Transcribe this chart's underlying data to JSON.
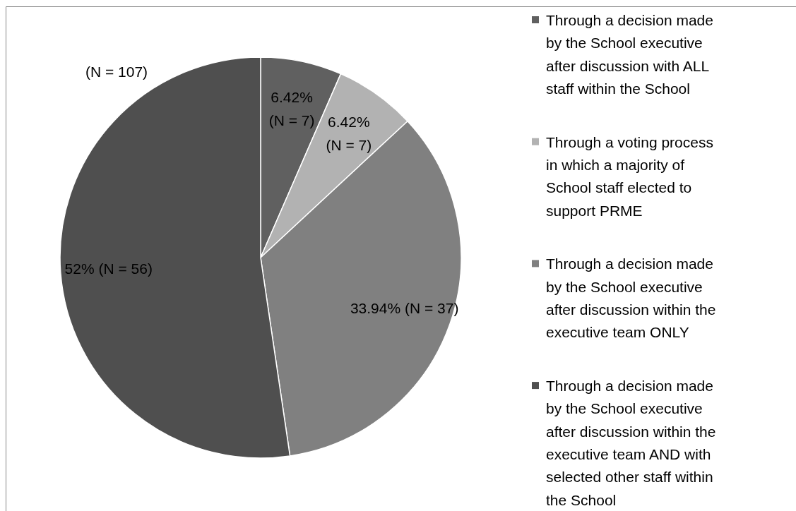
{
  "chart_data": {
    "type": "pie",
    "title": "(N = 107)",
    "categories": [
      "Through a decision made by the School executive after discussion with ALL staff within the School",
      "Through a voting process in which a majority of School staff elected to support PRME",
      "Through a decision made by the School executive after discussion within the executive team ONLY",
      "Through a decision made by the School executive after discussion within the executive team AND with selected other staff within the School"
    ],
    "values": [
      7,
      7,
      37,
      56
    ],
    "colors": [
      "#606060",
      "#b2b2b2",
      "#808080",
      "#4f4f4f"
    ],
    "value_labels": [
      "6.42% (N = 7)",
      "6.42% (N = 7)",
      "33.94% (N = 37)",
      "52% (N = 56)"
    ],
    "legend": "right"
  }
}
